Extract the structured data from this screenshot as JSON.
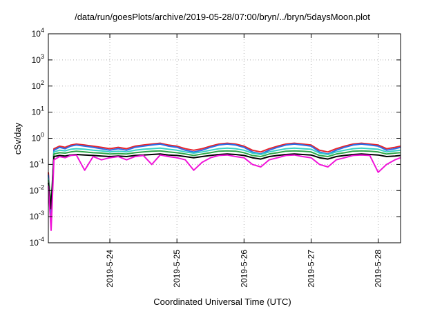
{
  "chart_data": {
    "type": "line",
    "title": "/data/run/goesPlots/archive/2019-05-28/07:00/bryn/../bryn/5daysMoon.plot",
    "xlabel": "Coordinated Universal Time (UTC)",
    "ylabel": "cSv/day",
    "yscale": "log",
    "ylim": [
      0.0001,
      10000
    ],
    "xlim": [
      "2019-05-23T02:00",
      "2019-05-28T08:00"
    ],
    "grid": true,
    "legend": "none",
    "y_ticks": [
      {
        "base": "10",
        "exp": "-4",
        "value": 0.0001
      },
      {
        "base": "10",
        "exp": "-3",
        "value": 0.001
      },
      {
        "base": "10",
        "exp": "-2",
        "value": 0.01
      },
      {
        "base": "10",
        "exp": "-1",
        "value": 0.1
      },
      {
        "base": "10",
        "exp": "0",
        "value": 1
      },
      {
        "base": "10",
        "exp": "1",
        "value": 10
      },
      {
        "base": "10",
        "exp": "2",
        "value": 100
      },
      {
        "base": "10",
        "exp": "3",
        "value": 1000
      },
      {
        "base": "10",
        "exp": "4",
        "value": 10000
      }
    ],
    "x_ticks": [
      {
        "label": "2019-5-24",
        "value": "2019-05-24T00:00"
      },
      {
        "label": "2019-5-25",
        "value": "2019-05-25T00:00"
      },
      {
        "label": "2019-5-26",
        "value": "2019-05-26T00:00"
      },
      {
        "label": "2019-5-27",
        "value": "2019-05-27T00:00"
      },
      {
        "label": "2019-5-28",
        "value": "2019-05-28T00:00"
      }
    ],
    "x": [
      "2019-05-23T02:00",
      "2019-05-23T03:00",
      "2019-05-23T04:00",
      "2019-05-23T06:00",
      "2019-05-23T08:00",
      "2019-05-23T10:00",
      "2019-05-23T12:00",
      "2019-05-23T15:00",
      "2019-05-23T18:00",
      "2019-05-23T21:00",
      "2019-05-24T00:00",
      "2019-05-24T03:00",
      "2019-05-24T06:00",
      "2019-05-24T09:00",
      "2019-05-24T12:00",
      "2019-05-24T15:00",
      "2019-05-24T18:00",
      "2019-05-24T21:00",
      "2019-05-25T00:00",
      "2019-05-25T03:00",
      "2019-05-25T06:00",
      "2019-05-25T09:00",
      "2019-05-25T12:00",
      "2019-05-25T15:00",
      "2019-05-25T18:00",
      "2019-05-25T21:00",
      "2019-05-26T00:00",
      "2019-05-26T03:00",
      "2019-05-26T06:00",
      "2019-05-26T09:00",
      "2019-05-26T12:00",
      "2019-05-26T15:00",
      "2019-05-26T18:00",
      "2019-05-26T21:00",
      "2019-05-27T00:00",
      "2019-05-27T03:00",
      "2019-05-27T06:00",
      "2019-05-27T09:00",
      "2019-05-27T12:00",
      "2019-05-27T15:00",
      "2019-05-27T18:00",
      "2019-05-27T21:00",
      "2019-05-28T00:00",
      "2019-05-28T03:00",
      "2019-05-28T06:00",
      "2019-05-28T08:00"
    ],
    "series": [
      {
        "color": "#e8232b",
        "values": [
          0.05,
          0.001,
          0.4,
          0.5,
          0.45,
          0.55,
          0.6,
          0.55,
          0.5,
          0.45,
          0.4,
          0.45,
          0.4,
          0.5,
          0.55,
          0.6,
          0.65,
          0.55,
          0.5,
          0.4,
          0.35,
          0.4,
          0.5,
          0.6,
          0.65,
          0.6,
          0.5,
          0.35,
          0.3,
          0.4,
          0.5,
          0.6,
          0.65,
          0.6,
          0.55,
          0.35,
          0.3,
          0.4,
          0.5,
          0.6,
          0.65,
          0.6,
          0.55,
          0.4,
          0.45,
          0.5
        ]
      },
      {
        "color": "#2b6fe8",
        "values": [
          0.04,
          0.0008,
          0.35,
          0.45,
          0.4,
          0.5,
          0.55,
          0.5,
          0.45,
          0.4,
          0.35,
          0.4,
          0.35,
          0.45,
          0.5,
          0.55,
          0.6,
          0.5,
          0.45,
          0.35,
          0.3,
          0.35,
          0.45,
          0.55,
          0.6,
          0.55,
          0.45,
          0.3,
          0.25,
          0.35,
          0.45,
          0.55,
          0.6,
          0.55,
          0.5,
          0.3,
          0.25,
          0.35,
          0.45,
          0.55,
          0.6,
          0.55,
          0.5,
          0.35,
          0.4,
          0.45
        ]
      },
      {
        "color": "#35d1c5",
        "values": [
          0.03,
          0.002,
          0.3,
          0.35,
          0.33,
          0.38,
          0.4,
          0.38,
          0.35,
          0.33,
          0.3,
          0.32,
          0.3,
          0.35,
          0.38,
          0.4,
          0.42,
          0.38,
          0.35,
          0.3,
          0.27,
          0.3,
          0.35,
          0.4,
          0.42,
          0.4,
          0.35,
          0.27,
          0.24,
          0.3,
          0.35,
          0.4,
          0.42,
          0.4,
          0.38,
          0.27,
          0.24,
          0.3,
          0.35,
          0.4,
          0.42,
          0.4,
          0.38,
          0.3,
          0.33,
          0.35
        ]
      },
      {
        "color": "#2fa84a",
        "values": [
          0.025,
          0.003,
          0.25,
          0.28,
          0.27,
          0.3,
          0.32,
          0.3,
          0.28,
          0.27,
          0.25,
          0.26,
          0.25,
          0.28,
          0.3,
          0.32,
          0.33,
          0.3,
          0.28,
          0.25,
          0.22,
          0.25,
          0.28,
          0.32,
          0.33,
          0.32,
          0.28,
          0.22,
          0.2,
          0.25,
          0.28,
          0.32,
          0.33,
          0.32,
          0.3,
          0.22,
          0.2,
          0.25,
          0.28,
          0.32,
          0.33,
          0.32,
          0.3,
          0.25,
          0.27,
          0.28
        ]
      },
      {
        "color": "#000000",
        "values": [
          0.02,
          0.002,
          0.2,
          0.22,
          0.21,
          0.23,
          0.24,
          0.23,
          0.22,
          0.21,
          0.2,
          0.21,
          0.2,
          0.22,
          0.23,
          0.24,
          0.25,
          0.23,
          0.22,
          0.2,
          0.18,
          0.2,
          0.22,
          0.24,
          0.25,
          0.24,
          0.22,
          0.18,
          0.16,
          0.2,
          0.22,
          0.24,
          0.25,
          0.24,
          0.23,
          0.18,
          0.16,
          0.2,
          0.22,
          0.24,
          0.25,
          0.24,
          0.23,
          0.2,
          0.21,
          0.22
        ]
      },
      {
        "color": "#f014d8",
        "values": [
          0.015,
          0.0003,
          0.15,
          0.2,
          0.18,
          0.22,
          0.23,
          0.06,
          0.2,
          0.15,
          0.18,
          0.2,
          0.15,
          0.2,
          0.22,
          0.1,
          0.23,
          0.2,
          0.18,
          0.15,
          0.06,
          0.12,
          0.18,
          0.22,
          0.23,
          0.2,
          0.18,
          0.1,
          0.08,
          0.15,
          0.18,
          0.22,
          0.23,
          0.2,
          0.18,
          0.1,
          0.08,
          0.15,
          0.18,
          0.22,
          0.23,
          0.22,
          0.05,
          0.1,
          0.15,
          0.18
        ]
      }
    ]
  }
}
